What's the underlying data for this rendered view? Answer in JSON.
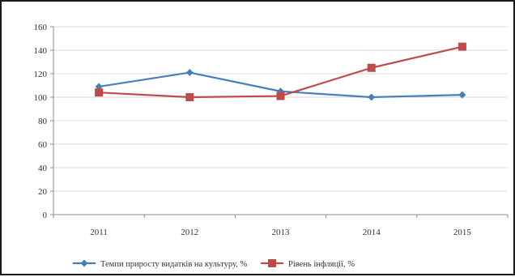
{
  "chart_data": {
    "type": "line",
    "categories": [
      "2011",
      "2012",
      "2013",
      "2014",
      "2015"
    ],
    "series": [
      {
        "name": "Темпи приросту видатків на культуру, %",
        "color": "#4a7ebb",
        "marker": "diamond",
        "values": [
          109,
          121,
          105,
          100,
          102
        ]
      },
      {
        "name": "Рівень інфляції, %",
        "color": "#be4b48",
        "marker": "square",
        "values": [
          104,
          100,
          101,
          125,
          143
        ]
      }
    ],
    "ylim": [
      0,
      160
    ],
    "yticks": [
      0,
      20,
      40,
      60,
      80,
      100,
      120,
      140,
      160
    ],
    "grid": true,
    "legend": "bottom",
    "title": "",
    "xlabel": "",
    "ylabel": ""
  }
}
